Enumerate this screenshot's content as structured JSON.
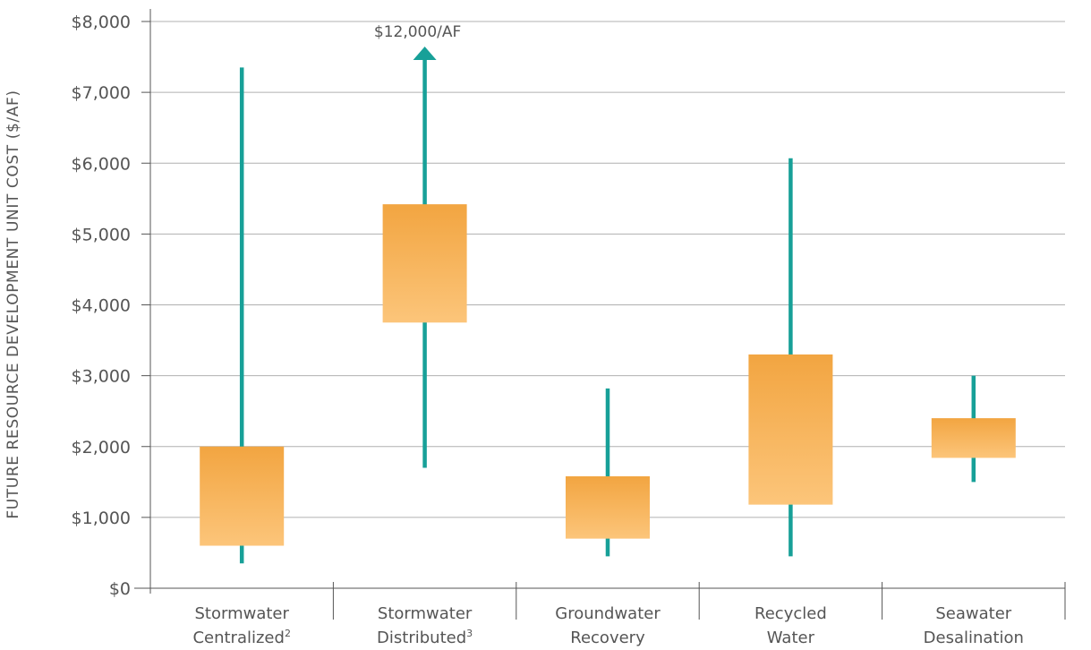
{
  "chart_data": {
    "type": "box",
    "ylabel": "FUTURE RESOURCE DEVELOPMENT UNIT COST ($/AF)",
    "ylim": [
      0,
      8000
    ],
    "yticks": [
      0,
      1000,
      2000,
      3000,
      4000,
      5000,
      6000,
      7000,
      8000
    ],
    "ytick_labels": [
      "$0",
      "$1,000",
      "$2,000",
      "$3,000",
      "$4,000",
      "$5,000",
      "$6,000",
      "$7,000",
      "$8,000"
    ],
    "grid": true,
    "categories": [
      {
        "line1": "Stormwater",
        "line2": "Centralized",
        "sup": "2",
        "whisker_low": 350,
        "box_low": 600,
        "box_high": 2000,
        "whisker_high": 7350
      },
      {
        "line1": "Stormwater",
        "line2": "Distributed",
        "sup": "3",
        "whisker_low": 1700,
        "box_low": 3750,
        "box_high": 5420,
        "whisker_high": 12000,
        "whisker_high_label": "$12,000/AF",
        "off_scale": true
      },
      {
        "line1": "Groundwater",
        "line2": "Recovery",
        "sup": "",
        "whisker_low": 450,
        "box_low": 700,
        "box_high": 1580,
        "whisker_high": 2820
      },
      {
        "line1": "Recycled",
        "line2": "Water",
        "sup": "",
        "whisker_low": 450,
        "box_low": 1180,
        "box_high": 3300,
        "whisker_high": 6070
      },
      {
        "line1": "Seawater",
        "line2": "Desalination",
        "sup": "",
        "whisker_low": 1500,
        "box_low": 1840,
        "box_high": 2400,
        "whisker_high": 3000
      }
    ],
    "colors": {
      "box_top": "#f2a541",
      "box_bottom": "#fcc57a",
      "whisker": "#17a098",
      "grid": "#b0b0b0",
      "axis": "#555555"
    }
  }
}
